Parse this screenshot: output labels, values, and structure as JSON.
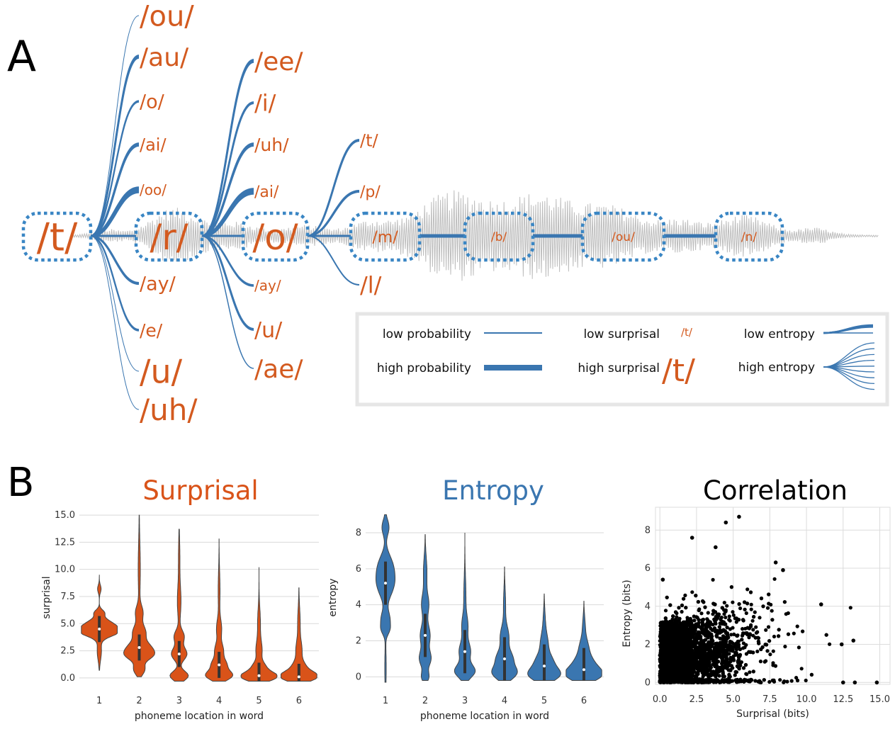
{
  "panel_a": {
    "label": "A",
    "nodes": [
      "/t/",
      "/r/",
      "/o/",
      "/m/",
      "/b/",
      "/ou/",
      "/n/"
    ],
    "branches_t": [
      "/ou/",
      "/au/",
      "/o/",
      "/ai/",
      "/oo/",
      "/ay/",
      "/e/",
      "/u/",
      "/uh/"
    ],
    "branches_r": [
      "/ee/",
      "/i/",
      "/uh/",
      "/ai/",
      "/ay/",
      "/u/",
      "/ae/"
    ],
    "branches_o": [
      "/t/",
      "/p/",
      "/l/"
    ],
    "legend": {
      "low_probability": "low probability",
      "high_probability": "high probability",
      "low_surprisal": "low surprisal",
      "high_surprisal": "high surprisal",
      "surprisal_example_small": "/t/",
      "surprisal_example_large": "/t/",
      "low_entropy": "low entropy",
      "high_entropy": "high entropy"
    },
    "colors": {
      "phoneme": "#d35a1f",
      "branch": "#3a76b0",
      "waveform": "#bdbdbd"
    }
  },
  "panel_b": {
    "label": "B",
    "titles": {
      "surprisal": "Surprisal",
      "entropy": "Entropy",
      "correlation": "Correlation"
    },
    "colors": {
      "surprisal": "#d95319",
      "entropy": "#3a76b0",
      "correlation": "#000000"
    }
  },
  "chart_data": [
    {
      "type": "violin",
      "title": "Surprisal",
      "xlabel": "phoneme location in word",
      "ylabel": "surprisal",
      "categories": [
        "1",
        "2",
        "3",
        "4",
        "5",
        "6"
      ],
      "ylim": [
        -0.4,
        15.2
      ],
      "yticks": [
        "0.0",
        "2.5",
        "5.0",
        "7.5",
        "10.0",
        "12.5",
        "15.0"
      ],
      "median": [
        4.5,
        2.8,
        2.2,
        1.2,
        0.2,
        0.1
      ],
      "range": [
        [
          0.7,
          9.5
        ],
        [
          0.1,
          15.0
        ],
        [
          -0.3,
          13.7
        ],
        [
          -0.3,
          12.8
        ],
        [
          -0.3,
          10.2
        ],
        [
          -0.3,
          8.3
        ]
      ],
      "grid": true
    },
    {
      "type": "violin",
      "title": "Entropy",
      "xlabel": "phoneme location in word",
      "ylabel": "entropy",
      "categories": [
        "1",
        "2",
        "3",
        "4",
        "5",
        "6"
      ],
      "ylim": [
        -0.3,
        9.1
      ],
      "yticks": [
        "0",
        "2",
        "4",
        "6",
        "8"
      ],
      "median": [
        5.2,
        2.3,
        1.4,
        1.0,
        0.6,
        0.4
      ],
      "range": [
        [
          -0.3,
          9.0
        ],
        [
          -0.2,
          7.9
        ],
        [
          -0.2,
          8.0
        ],
        [
          -0.2,
          6.1
        ],
        [
          -0.2,
          4.6
        ],
        [
          -0.2,
          4.2
        ]
      ],
      "grid": true
    },
    {
      "type": "scatter",
      "title": "Correlation",
      "xlabel": "Surprisal (bits)",
      "ylabel": "Entropy (bits)",
      "xlim": [
        -0.3,
        15.7
      ],
      "ylim": [
        -0.1,
        9.2
      ],
      "xticks": [
        "0.0",
        "2.5",
        "5.0",
        "7.5",
        "10.0",
        "12.5",
        "15.0"
      ],
      "yticks": [
        "0",
        "2",
        "4",
        "6",
        "8"
      ],
      "sample_points": [
        [
          5.4,
          8.7
        ],
        [
          4.5,
          8.4
        ],
        [
          2.2,
          7.6
        ],
        [
          3.8,
          7.1
        ],
        [
          8.4,
          5.9
        ],
        [
          11.0,
          4.1
        ],
        [
          12.4,
          2.0
        ],
        [
          13.2,
          2.2
        ],
        [
          12.5,
          0.0
        ],
        [
          13.3,
          0.0
        ],
        [
          14.8,
          0.0
        ],
        [
          0.2,
          5.4
        ],
        [
          7.9,
          6.3
        ]
      ],
      "point_color": "#000000",
      "grid": true
    }
  ]
}
